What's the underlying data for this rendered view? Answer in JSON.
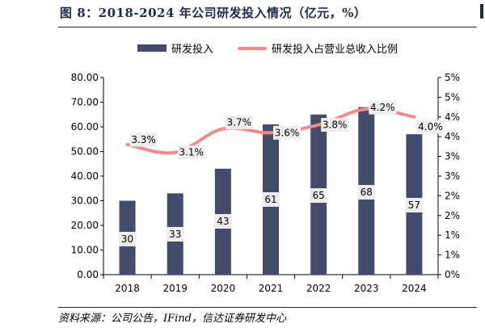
{
  "title": "图 8：2018-2024 年公司研发投入情况（亿元，%）",
  "source": "资料来源：公司公告，IFind，信达证券研发中心",
  "colors": {
    "bar": "#454c6b",
    "line": "#f08a86",
    "label_bg": "#eeeeee",
    "axis": "#000000"
  },
  "chart_data": {
    "type": "bar",
    "categories": [
      "2018",
      "2019",
      "2020",
      "2021",
      "2022",
      "2023",
      "2024"
    ],
    "series": [
      {
        "name": "研发投入",
        "type": "bar",
        "axis": "left",
        "values": [
          30,
          33,
          43,
          61,
          65,
          68,
          57
        ],
        "labels": [
          "30",
          "33",
          "43",
          "61",
          "65",
          "68",
          "57"
        ]
      },
      {
        "name": "研发投入占营业总收入比例",
        "type": "line",
        "axis": "right",
        "values": [
          3.3,
          3.1,
          3.7,
          3.6,
          3.8,
          4.2,
          4.0
        ],
        "labels": [
          "3.3%",
          "3.1%",
          "3.7%",
          "3.6%",
          "3.8%",
          "4.2%",
          "4.0%"
        ]
      }
    ],
    "left_axis": {
      "ylim": [
        0,
        80
      ],
      "ticks": [
        "0.00",
        "10.00",
        "20.00",
        "30.00",
        "40.00",
        "50.00",
        "60.00",
        "70.00",
        "80.00"
      ]
    },
    "right_axis": {
      "ylim": [
        0,
        5
      ],
      "ticks": [
        "0%",
        "1%",
        "1%",
        "2%",
        "2%",
        "3%",
        "3%",
        "4%",
        "4%",
        "5%",
        "5%"
      ]
    },
    "grid": false,
    "legend": "top-center"
  }
}
